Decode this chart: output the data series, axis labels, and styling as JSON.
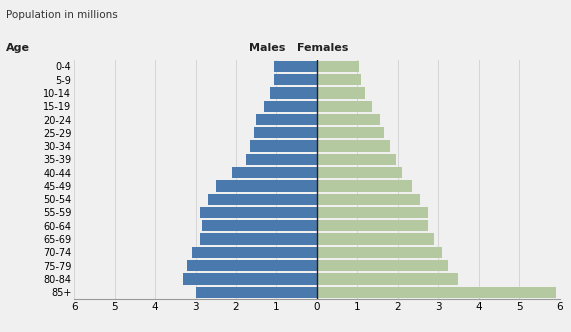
{
  "ylabel_top": "Population in millions",
  "age_label": "Age",
  "males_label": "Males",
  "females_label": "Females",
  "age_groups": [
    "0-4",
    "5-9",
    "10-14",
    "15-19",
    "20-24",
    "25-29",
    "30-34",
    "35-39",
    "40-44",
    "45-49",
    "50-54",
    "55-59",
    "60-64",
    "65-69",
    "70-74",
    "75-79",
    "80-84",
    "85+"
  ],
  "males": [
    1.05,
    1.05,
    1.15,
    1.3,
    1.5,
    1.55,
    1.65,
    1.75,
    2.1,
    2.5,
    2.7,
    2.9,
    2.85,
    2.9,
    3.1,
    3.2,
    3.3,
    3.0
  ],
  "females": [
    1.05,
    1.1,
    1.2,
    1.35,
    1.55,
    1.65,
    1.8,
    1.95,
    2.1,
    2.35,
    2.55,
    2.75,
    2.75,
    2.9,
    3.1,
    3.25,
    3.5,
    5.9
  ],
  "male_color": "#4a7aad",
  "female_color": "#b5c9a0",
  "background_color": "#f0f0f0",
  "xlim": 6,
  "bar_height": 0.85,
  "grid_color": "#d0d0d0"
}
